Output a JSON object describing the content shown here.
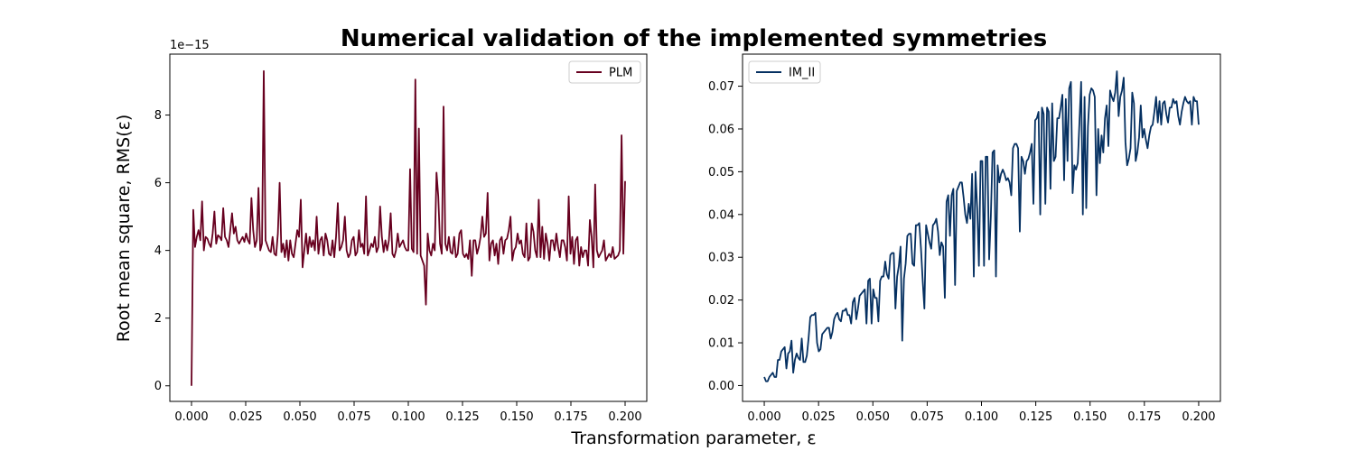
{
  "figure": {
    "title": "Numerical validation of the implemented symmetries",
    "xlabel": "Transformation parameter, ε",
    "ylabel": "Root mean square, RMS(ε)"
  },
  "chart_data": [
    {
      "type": "line",
      "series": [
        {
          "name": "PLM",
          "color": "#67001f"
        }
      ],
      "x_range": [
        0.0,
        0.2
      ],
      "xlim": [
        -0.01,
        0.21
      ],
      "ylim": [
        -0.46,
        9.8
      ],
      "y_offset_label": "1e−15",
      "xticks": [
        "0.000",
        "0.025",
        "0.050",
        "0.075",
        "0.100",
        "0.125",
        "0.150",
        "0.175",
        "0.200"
      ],
      "yticks": [
        "0",
        "2",
        "4",
        "6",
        "8"
      ],
      "legend": "top-right",
      "grid": false,
      "y": [
        0.0,
        5.2,
        4.1,
        4.4,
        4.6,
        4.3,
        5.45,
        4.0,
        4.4,
        4.35,
        4.2,
        4.1,
        4.5,
        5.15,
        4.2,
        4.45,
        4.4,
        4.3,
        5.25,
        4.4,
        4.3,
        4.1,
        4.6,
        5.1,
        4.5,
        4.7,
        4.3,
        4.2,
        4.3,
        4.4,
        4.25,
        4.5,
        4.3,
        4.2,
        5.55,
        4.6,
        4.1,
        4.3,
        5.85,
        4.0,
        4.2,
        9.3,
        4.3,
        4.15,
        4.0,
        3.95,
        4.4,
        3.9,
        3.85,
        4.5,
        6.0,
        3.95,
        4.2,
        3.8,
        4.3,
        3.7,
        4.3,
        3.9,
        3.8,
        4.2,
        4.6,
        4.4,
        5.5,
        3.5,
        4.0,
        4.5,
        3.9,
        4.4,
        4.1,
        4.3,
        4.0,
        5.0,
        3.9,
        4.3,
        4.4,
        3.85,
        4.5,
        4.3,
        3.9,
        3.85,
        4.3,
        3.8,
        4.4,
        5.4,
        4.0,
        4.1,
        4.3,
        5.0,
        4.0,
        3.8,
        3.9,
        4.3,
        4.4,
        3.85,
        3.95,
        4.6,
        4.1,
        4.2,
        3.9,
        5.6,
        3.85,
        4.0,
        4.2,
        4.1,
        4.4,
        3.95,
        4.1,
        5.3,
        4.4,
        3.95,
        4.3,
        4.0,
        4.3,
        5.1,
        3.9,
        3.8,
        4.0,
        4.5,
        4.1,
        4.2,
        4.3,
        4.1,
        4.0,
        4.0,
        6.4,
        4.05,
        3.95,
        9.05,
        3.9,
        7.6,
        3.85,
        3.7,
        3.55,
        2.4,
        4.5,
        4.0,
        3.85,
        4.2,
        4.0,
        6.3,
        5.6,
        4.2,
        3.9,
        8.25,
        4.2,
        4.0,
        4.4,
        3.95,
        3.9,
        4.4,
        3.8,
        3.9,
        4.5,
        4.6,
        3.9,
        3.8,
        3.9,
        3.75,
        4.3,
        3.25,
        4.3,
        4.3,
        3.9,
        4.1,
        4.4,
        5.0,
        4.4,
        4.5,
        5.7,
        3.7,
        4.2,
        4.3,
        3.85,
        4.2,
        3.6,
        4.3,
        4.4,
        3.9,
        4.3,
        4.35,
        4.6,
        5.0,
        3.7,
        4.0,
        4.1,
        4.5,
        4.2,
        4.3,
        3.9,
        3.8,
        4.8,
        3.7,
        3.8,
        4.8,
        4.55,
        4.0,
        3.8,
        5.5,
        3.8,
        4.7,
        3.75,
        4.5,
        4.2,
        3.7,
        4.3,
        4.3,
        4.0,
        4.5,
        4.1,
        3.8,
        4.3,
        4.3,
        4.1,
        3.7,
        5.6,
        3.9,
        4.4,
        3.6,
        4.3,
        4.4,
        3.55,
        4.1,
        3.8,
        4.0,
        4.0,
        3.55,
        4.9,
        4.4,
        3.5,
        5.95,
        4.0,
        3.8,
        3.9,
        4.0,
        4.3,
        3.7,
        3.8,
        3.9,
        3.8,
        4.1,
        3.75,
        3.8,
        3.85,
        4.0,
        7.4,
        3.9,
        6.05
      ]
    },
    {
      "type": "line",
      "series": [
        {
          "name": "IM_II",
          "color": "#053061"
        }
      ],
      "x_range": [
        0.0,
        0.2
      ],
      "xlim": [
        -0.01,
        0.21
      ],
      "ylim": [
        -0.0037,
        0.0775
      ],
      "xticks": [
        "0.000",
        "0.025",
        "0.050",
        "0.075",
        "0.100",
        "0.125",
        "0.150",
        "0.175",
        "0.200"
      ],
      "yticks": [
        "0.00",
        "0.01",
        "0.02",
        "0.03",
        "0.04",
        "0.05",
        "0.06",
        "0.07"
      ],
      "legend": "top-left",
      "grid": false,
      "y": [
        0.002,
        0.001,
        0.001,
        0.002,
        0.0025,
        0.003,
        0.002,
        0.002,
        0.006,
        0.006,
        0.008,
        0.0085,
        0.009,
        0.004,
        0.0075,
        0.008,
        0.0105,
        0.003,
        0.006,
        0.0075,
        0.0065,
        0.006,
        0.011,
        0.0055,
        0.0055,
        0.007,
        0.011,
        0.016,
        0.0165,
        0.0165,
        0.017,
        0.01,
        0.008,
        0.0085,
        0.012,
        0.0125,
        0.013,
        0.0135,
        0.0135,
        0.011,
        0.0125,
        0.0155,
        0.0165,
        0.017,
        0.0155,
        0.015,
        0.0175,
        0.0175,
        0.018,
        0.0165,
        0.0165,
        0.0145,
        0.0195,
        0.0205,
        0.0155,
        0.018,
        0.021,
        0.0215,
        0.022,
        0.0225,
        0.0145,
        0.0245,
        0.025,
        0.0145,
        0.0225,
        0.0205,
        0.0205,
        0.015,
        0.0245,
        0.0255,
        0.0255,
        0.029,
        0.026,
        0.025,
        0.0305,
        0.031,
        0.031,
        0.018,
        0.0255,
        0.028,
        0.0325,
        0.0105,
        0.025,
        0.0285,
        0.035,
        0.0355,
        0.0355,
        0.0285,
        0.028,
        0.0375,
        0.0375,
        0.038,
        0.032,
        0.0245,
        0.018,
        0.0375,
        0.0355,
        0.0335,
        0.032,
        0.0375,
        0.038,
        0.039,
        0.036,
        0.0305,
        0.0335,
        0.0325,
        0.0205,
        0.043,
        0.0445,
        0.035,
        0.0445,
        0.046,
        0.0235,
        0.0455,
        0.0465,
        0.0475,
        0.0475,
        0.044,
        0.04,
        0.038,
        0.0425,
        0.039,
        0.0495,
        0.0255,
        0.05,
        0.0415,
        0.028,
        0.0525,
        0.0525,
        0.028,
        0.0535,
        0.0535,
        0.0295,
        0.0395,
        0.0545,
        0.055,
        0.0255,
        0.0515,
        0.0475,
        0.0495,
        0.0505,
        0.0495,
        0.048,
        0.0485,
        0.0475,
        0.0445,
        0.0555,
        0.0565,
        0.0565,
        0.0555,
        0.036,
        0.0535,
        0.0525,
        0.0495,
        0.0525,
        0.053,
        0.0545,
        0.0565,
        0.0425,
        0.062,
        0.0625,
        0.064,
        0.04,
        0.065,
        0.0635,
        0.0425,
        0.065,
        0.064,
        0.046,
        0.066,
        0.0525,
        0.0535,
        0.0625,
        0.0625,
        0.065,
        0.068,
        0.048,
        0.067,
        0.0525,
        0.0695,
        0.071,
        0.045,
        0.0515,
        0.0505,
        0.052,
        0.0615,
        0.071,
        0.04,
        0.0675,
        0.0415,
        0.0605,
        0.068,
        0.0695,
        0.069,
        0.0675,
        0.0445,
        0.06,
        0.052,
        0.0585,
        0.0545,
        0.0625,
        0.0655,
        0.056,
        0.069,
        0.0675,
        0.0665,
        0.0685,
        0.0735,
        0.063,
        0.0675,
        0.069,
        0.072,
        0.057,
        0.0515,
        0.053,
        0.0555,
        0.0685,
        0.066,
        0.0525,
        0.0545,
        0.058,
        0.0655,
        0.058,
        0.06,
        0.0575,
        0.0555,
        0.0585,
        0.0605,
        0.061,
        0.064,
        0.0675,
        0.0615,
        0.0665,
        0.061,
        0.066,
        0.0665,
        0.0635,
        0.0615,
        0.065,
        0.065,
        0.067,
        0.066,
        0.0665,
        0.063,
        0.061,
        0.064,
        0.066,
        0.0675,
        0.0665,
        0.066,
        0.0665,
        0.061,
        0.0675,
        0.0665,
        0.0665,
        0.061
      ]
    }
  ]
}
